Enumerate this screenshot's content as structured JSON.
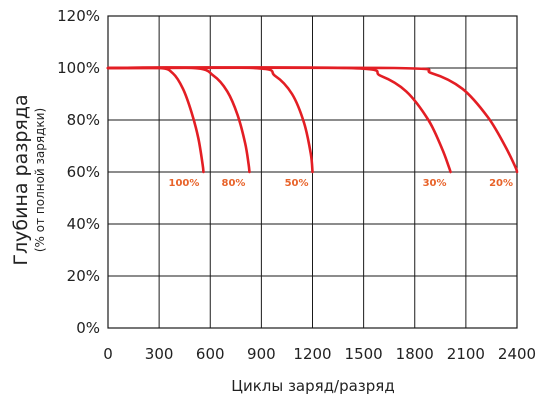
{
  "chart_data": {
    "type": "line",
    "xlabel": "Циклы заряд/разряд",
    "ylabel": "Глубина разряда",
    "ylabel_sub": "(% от полной зарядки)",
    "xlim": [
      0,
      2400
    ],
    "ylim": [
      0,
      120
    ],
    "x_ticks": [
      "0",
      "300",
      "600",
      "900",
      "1200",
      "1500",
      "1800",
      "2100",
      "2400"
    ],
    "y_ticks": [
      "0%",
      "20%",
      "40%",
      "60%",
      "80%",
      "100%",
      "120%"
    ],
    "grid": true,
    "line_color": "#e31e24",
    "label_color": "#e8632a",
    "series": [
      {
        "label": "100%",
        "points": [
          [
            0,
            100
          ],
          [
            300,
            100
          ],
          [
            380,
            98
          ],
          [
            440,
            92
          ],
          [
            490,
            83
          ],
          [
            530,
            73
          ],
          [
            555,
            63
          ],
          [
            560,
            60
          ]
        ]
      },
      {
        "label": "80%",
        "points": [
          [
            0,
            100
          ],
          [
            500,
            100
          ],
          [
            620,
            97
          ],
          [
            700,
            91
          ],
          [
            760,
            82
          ],
          [
            805,
            71
          ],
          [
            825,
            63
          ],
          [
            830,
            60
          ]
        ]
      },
      {
        "label": "50%",
        "points": [
          [
            0,
            100
          ],
          [
            850,
            100
          ],
          [
            980,
            97
          ],
          [
            1080,
            90
          ],
          [
            1150,
            79
          ],
          [
            1190,
            67
          ],
          [
            1200,
            60
          ]
        ]
      },
      {
        "label": "30%",
        "points": [
          [
            0,
            100
          ],
          [
            1400,
            100
          ],
          [
            1600,
            97
          ],
          [
            1750,
            91
          ],
          [
            1880,
            80
          ],
          [
            1960,
            69
          ],
          [
            2000,
            62
          ],
          [
            2010,
            60
          ]
        ]
      },
      {
        "label": "20%",
        "points": [
          [
            0,
            100
          ],
          [
            1680,
            100
          ],
          [
            1900,
            98
          ],
          [
            2080,
            92
          ],
          [
            2230,
            81
          ],
          [
            2330,
            70
          ],
          [
            2390,
            62
          ],
          [
            2400,
            60
          ]
        ]
      }
    ]
  }
}
